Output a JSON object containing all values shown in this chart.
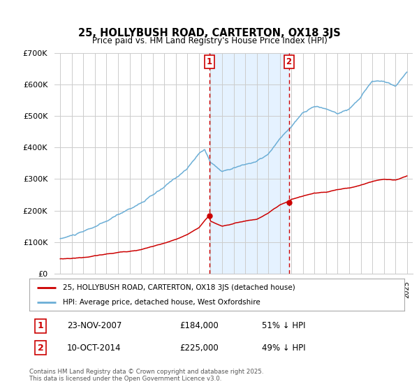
{
  "title": "25, HOLLYBUSH ROAD, CARTERTON, OX18 3JS",
  "subtitle": "Price paid vs. HM Land Registry's House Price Index (HPI)",
  "hpi_color": "#6baed6",
  "price_color": "#cc0000",
  "vline1_x": 2007.9,
  "vline2_x": 2014.78,
  "vline_color": "#cc0000",
  "shade_color": "#ddeeff",
  "ylim": [
    0,
    700000
  ],
  "yticks": [
    0,
    100000,
    200000,
    300000,
    400000,
    500000,
    600000,
    700000
  ],
  "ytick_labels": [
    "£0",
    "£100K",
    "£200K",
    "£300K",
    "£400K",
    "£500K",
    "£600K",
    "£700K"
  ],
  "xlim": [
    1994.5,
    2025.5
  ],
  "legend1_label": "25, HOLLYBUSH ROAD, CARTERTON, OX18 3JS (detached house)",
  "legend2_label": "HPI: Average price, detached house, West Oxfordshire",
  "sale1_label": "1",
  "sale1_date": "23-NOV-2007",
  "sale1_price": "£184,000",
  "sale1_hpi": "51% ↓ HPI",
  "sale2_label": "2",
  "sale2_date": "10-OCT-2014",
  "sale2_price": "£225,000",
  "sale2_hpi": "49% ↓ HPI",
  "footer": "Contains HM Land Registry data © Crown copyright and database right 2025.\nThis data is licensed under the Open Government Licence v3.0.",
  "background_color": "#ffffff",
  "grid_color": "#cccccc",
  "marker1_x": 2007.9,
  "marker1_y_red": 184000,
  "marker2_x": 2014.78,
  "marker2_y_red": 225000,
  "hpi_years_key": [
    1995,
    1997,
    1999,
    2000,
    2002,
    2004,
    2005,
    2006,
    2007,
    2007.5,
    2008,
    2009,
    2010,
    2011,
    2012,
    2013,
    2014,
    2015,
    2016,
    2017,
    2018,
    2019,
    2020,
    2021,
    2022,
    2023,
    2024,
    2025
  ],
  "hpi_vals_key": [
    110000,
    130000,
    160000,
    180000,
    220000,
    265000,
    295000,
    325000,
    370000,
    385000,
    345000,
    315000,
    330000,
    340000,
    350000,
    370000,
    415000,
    455000,
    495000,
    515000,
    508000,
    492000,
    510000,
    545000,
    598000,
    598000,
    582000,
    628000
  ],
  "red_years_key": [
    1995,
    1996,
    1997,
    1998,
    1999,
    2000,
    2001,
    2002,
    2003,
    2004,
    2005,
    2006,
    2007,
    2007.9,
    2008,
    2009,
    2010,
    2011,
    2012,
    2013,
    2014,
    2014.78,
    2015,
    2016,
    2017,
    2018,
    2019,
    2020,
    2021,
    2022,
    2023,
    2024,
    2025
  ],
  "red_vals_key": [
    47000,
    49000,
    52000,
    57000,
    62000,
    67000,
    72000,
    78000,
    88000,
    97000,
    108000,
    122000,
    145000,
    184000,
    165000,
    150000,
    158000,
    167000,
    172000,
    192000,
    215000,
    225000,
    232000,
    242000,
    252000,
    255000,
    263000,
    268000,
    278000,
    290000,
    298000,
    295000,
    308000
  ]
}
